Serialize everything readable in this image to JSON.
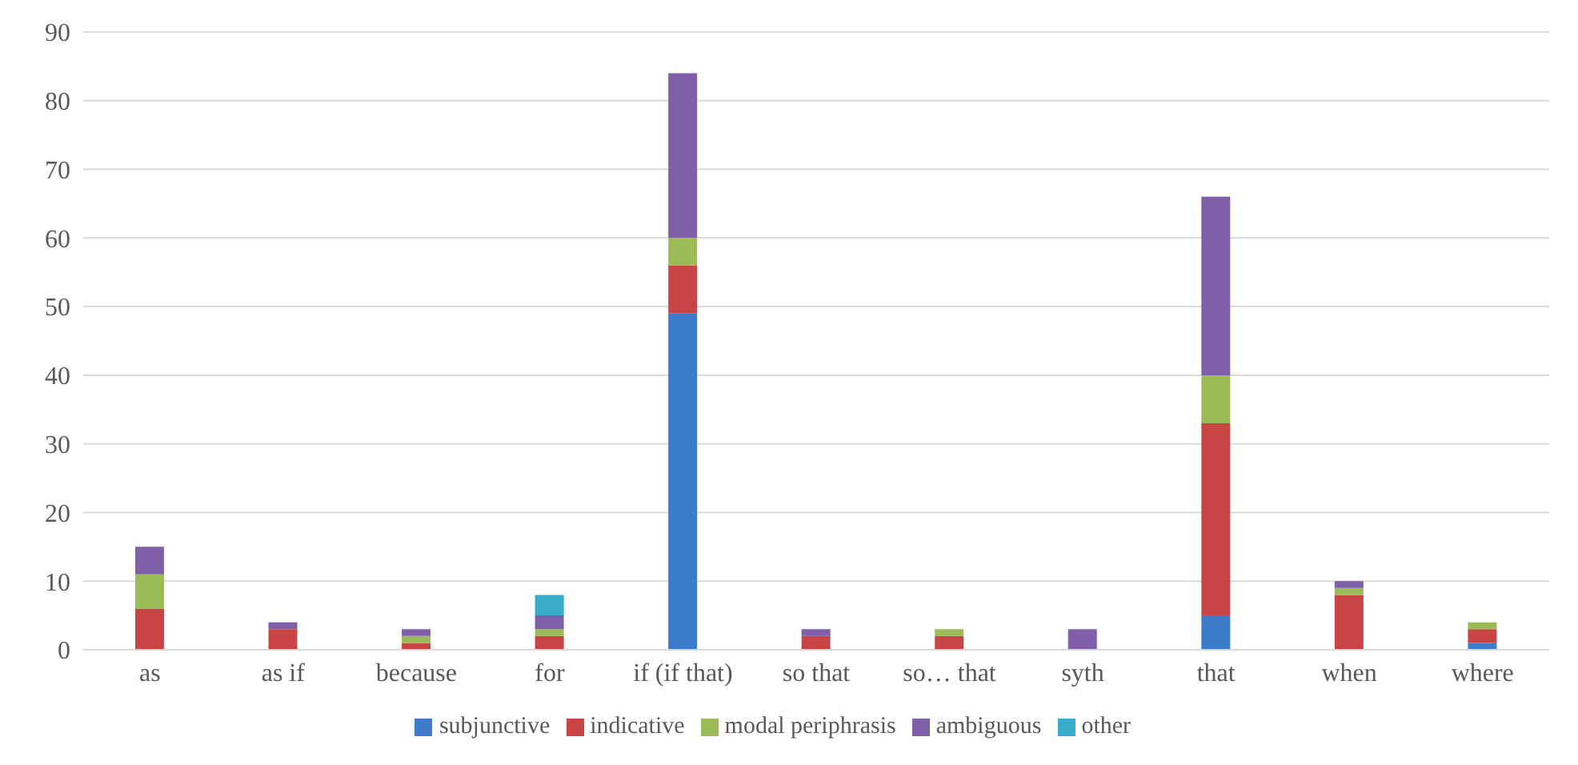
{
  "chart_data": {
    "type": "bar",
    "stacked": true,
    "categories": [
      "as",
      "as if",
      "because",
      "for",
      "if (if that)",
      "so that",
      "so… that",
      "syth",
      "that",
      "when",
      "where"
    ],
    "series": [
      {
        "name": "subjunctive",
        "color": "#3d7bcb",
        "values": [
          0,
          0,
          0,
          0,
          49,
          0,
          0,
          0,
          5,
          0,
          1
        ]
      },
      {
        "name": "indicative",
        "color": "#c94444",
        "values": [
          6,
          3,
          1,
          2,
          7,
          2,
          2,
          0,
          28,
          8,
          2
        ]
      },
      {
        "name": "modal periphrasis",
        "color": "#9bbb59",
        "values": [
          5,
          0,
          1,
          1,
          4,
          0,
          1,
          0,
          7,
          1,
          1
        ]
      },
      {
        "name": "ambiguous",
        "color": "#7f5fa8",
        "values": [
          4,
          1,
          1,
          2,
          24,
          1,
          0,
          3,
          26,
          1,
          0
        ]
      },
      {
        "name": "other",
        "color": "#3aaccb",
        "values": [
          0,
          0,
          0,
          3,
          0,
          0,
          0,
          0,
          0,
          0,
          0
        ]
      }
    ],
    "ylim": [
      0,
      90
    ],
    "yticks": [
      0,
      10,
      20,
      30,
      40,
      50,
      60,
      70,
      80,
      90
    ],
    "grid": "y",
    "legend": "bottom"
  }
}
